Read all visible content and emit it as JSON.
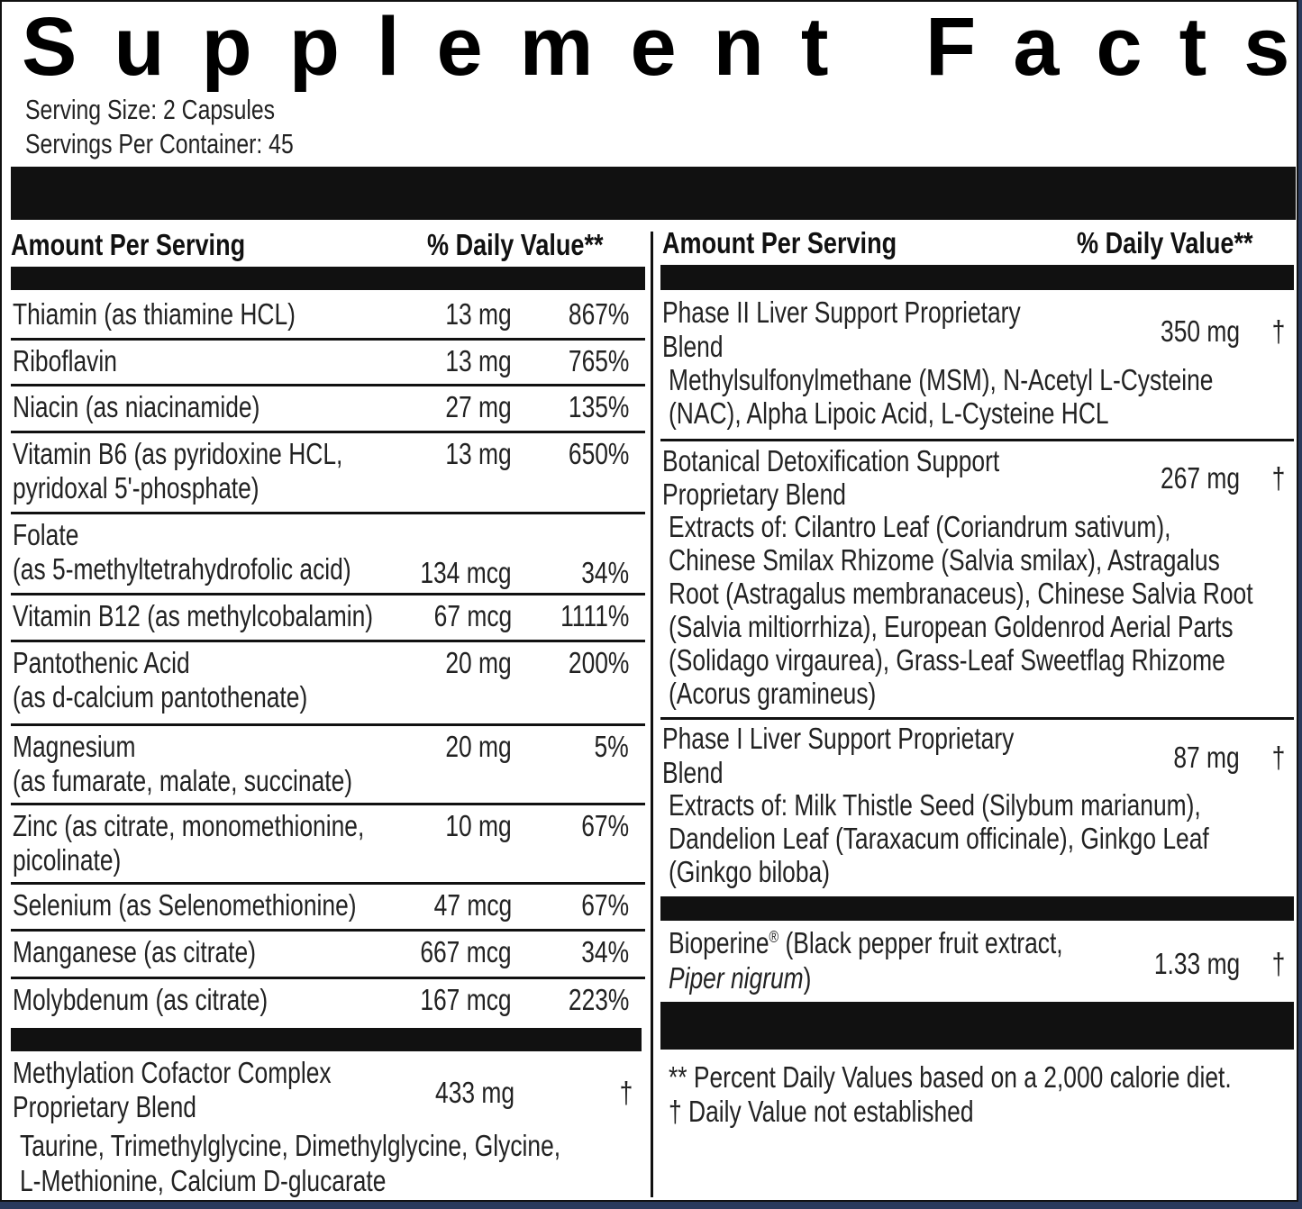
{
  "title": "Supplement Facts",
  "serving": {
    "size": "Serving Size: 2 Capsules",
    "per_container": "Servings Per Container: 45"
  },
  "headers": {
    "amount": "Amount Per Serving",
    "dv": "% Daily Value**"
  },
  "left_rows": [
    {
      "name": [
        "Thiamin (as thiamine HCL)"
      ],
      "amount": "13 mg",
      "dv": "867%"
    },
    {
      "name": [
        "Riboflavin"
      ],
      "amount": "13 mg",
      "dv": "765%"
    },
    {
      "name": [
        "Niacin (as niacinamide)"
      ],
      "amount": "27 mg",
      "dv": "135%"
    },
    {
      "name": [
        "Vitamin B6 (as pyridoxine HCL,",
        " pyridoxal 5'-phosphate)"
      ],
      "amount": "13 mg",
      "dv": "650%"
    },
    {
      "name": [
        "Folate",
        "(as 5-methyltetrahydrofolic acid)"
      ],
      "amount": "134 mcg",
      "dv": "34%"
    },
    {
      "name": [
        "Vitamin B12 (as methylcobalamin)"
      ],
      "amount": "67 mcg",
      "dv": "1111%"
    },
    {
      "name": [
        "Pantothenic Acid",
        "(as d-calcium pantothenate)"
      ],
      "amount": "20 mg",
      "dv": "200%"
    },
    {
      "name": [
        "Magnesium",
        "(as fumarate, malate, succinate)"
      ],
      "amount": "20 mg",
      "dv": "5%"
    },
    {
      "name": [
        "Zinc (as citrate, monomethionine,",
        "picolinate)"
      ],
      "amount": "10 mg",
      "dv": "67%"
    },
    {
      "name": [
        "Selenium (as Selenomethionine)"
      ],
      "amount": "47 mcg",
      "dv": "67%"
    },
    {
      "name": [
        "Manganese (as citrate)"
      ],
      "amount": "667 mcg",
      "dv": "34%"
    },
    {
      "name": [
        "Molybdenum (as citrate)"
      ],
      "amount": "167 mcg",
      "dv": "223%"
    }
  ],
  "methylation": {
    "name": [
      "Methylation Cofactor Complex",
      "Proprietary Blend"
    ],
    "amount": "433 mg",
    "dv": "†",
    "ingredients": [
      "Taurine, Trimethylglycine, Dimethylglycine, Glycine,",
      "L-Methionine, Calcium D-glucarate"
    ]
  },
  "right_blends": [
    {
      "name": [
        "Phase II Liver Support Proprietary",
        "Blend"
      ],
      "amount": "350 mg",
      "dv": "†",
      "ingredients": [
        "Methylsulfonylmethane (MSM), N-Acetyl L-Cysteine",
        "(NAC), Alpha Lipoic Acid, L-Cysteine HCL"
      ]
    },
    {
      "name": [
        "Botanical Detoxification Support",
        "Proprietary Blend"
      ],
      "amount": "267 mg",
      "dv": "†",
      "ingredients": [
        "Extracts of: Cilantro Leaf (Coriandrum sativum),",
        "Chinese Smilax Rhizome (Salvia smilax), Astragalus",
        "Root (Astragalus membranaceus), Chinese Salvia Root",
        "(Salvia miltiorrhiza), European Goldenrod Aerial Parts",
        "(Solidago virgaurea), Grass-Leaf Sweetflag Rhizome",
        "(Acorus gramineus)"
      ]
    },
    {
      "name": [
        "Phase I Liver Support Proprietary",
        "Blend"
      ],
      "amount": "87 mg",
      "dv": "†",
      "ingredients": [
        "Extracts of: Milk Thistle Seed (Silybum marianum),",
        "Dandelion Leaf (Taraxacum officinale), Ginkgo Leaf",
        "(Ginkgo biloba)"
      ]
    }
  ],
  "bioperine": {
    "name_main": "Bioperine",
    "reg": "®",
    "name_rest": " (Black pepper fruit extract,",
    "name_line2": "Piper nigrum",
    "name_line2_close": ")",
    "amount": "1.33 mg",
    "dv": "†"
  },
  "footnotes": [
    "** Percent Daily Values based on a 2,000 calorie diet.",
    "† Daily Value not established"
  ]
}
